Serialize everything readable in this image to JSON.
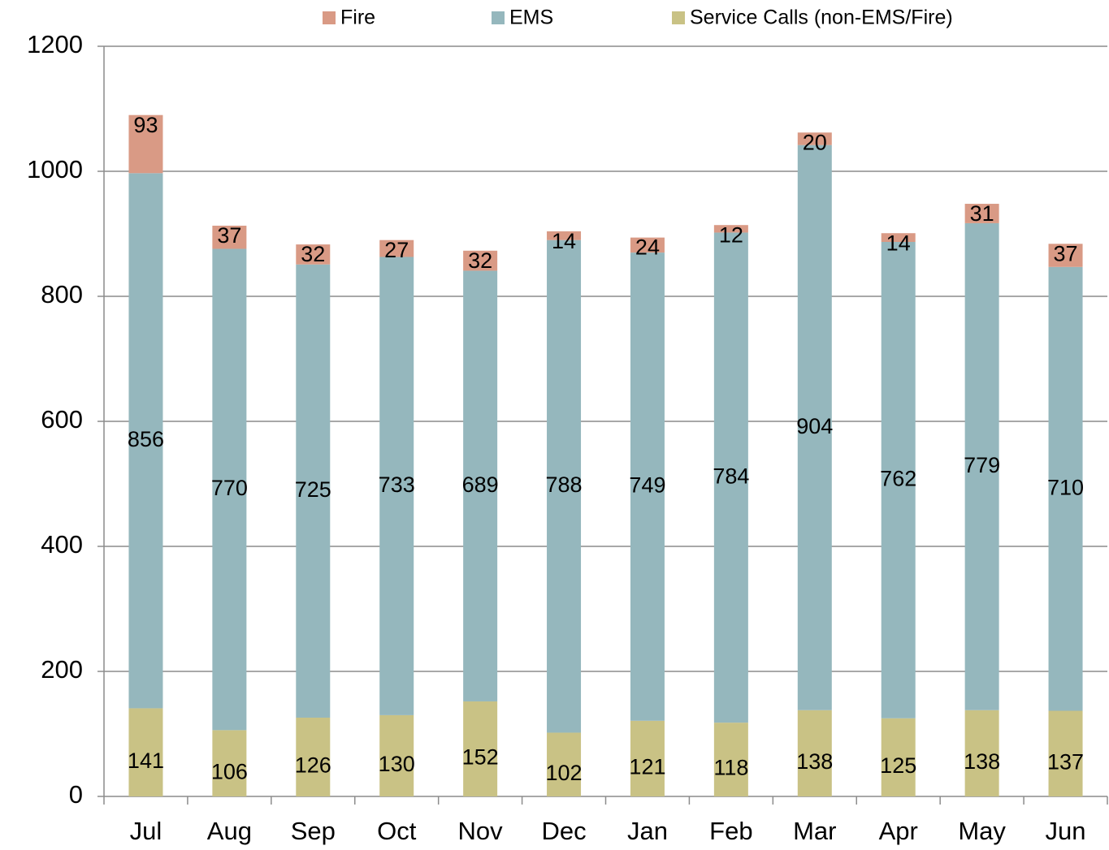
{
  "chart_data": {
    "type": "bar",
    "stacked": true,
    "categories": [
      "Jul",
      "Aug",
      "Sep",
      "Oct",
      "Nov",
      "Dec",
      "Jan",
      "Feb",
      "Mar",
      "Apr",
      "May",
      "Jun"
    ],
    "series": [
      {
        "name": "Fire",
        "color": "#d99a85",
        "values": [
          93,
          37,
          32,
          27,
          32,
          14,
          24,
          12,
          20,
          14,
          31,
          37
        ]
      },
      {
        "name": "EMS",
        "color": "#95b7bd",
        "values": [
          856,
          770,
          725,
          733,
          689,
          788,
          749,
          784,
          904,
          762,
          779,
          710
        ]
      },
      {
        "name": "Service Calls (non-EMS/Fire)",
        "color": "#c9c285",
        "values": [
          141,
          106,
          126,
          130,
          152,
          102,
          121,
          118,
          138,
          125,
          138,
          137
        ]
      }
    ],
    "ylim": [
      0,
      1200
    ],
    "yticks": [
      0,
      200,
      400,
      600,
      800,
      1000,
      1200
    ],
    "grid": true,
    "legend": "top"
  }
}
